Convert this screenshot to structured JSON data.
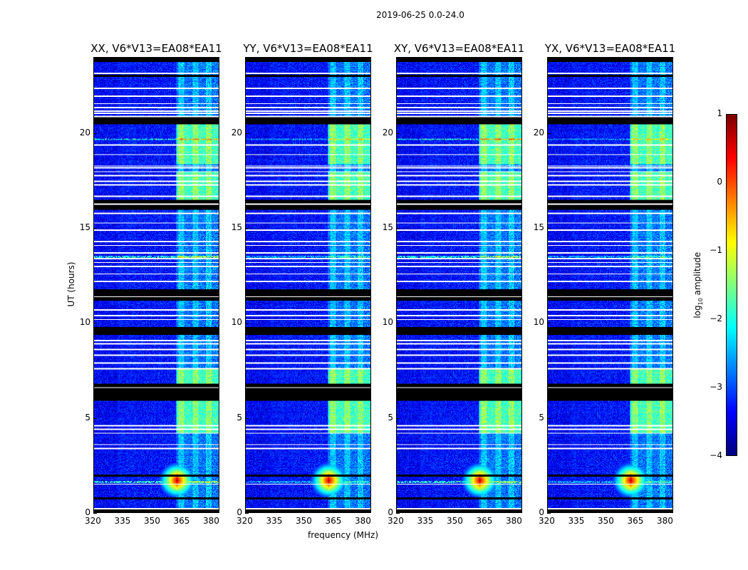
{
  "suptitle": "2019-06-25 0.0-24.0",
  "chart_data": {
    "type": "heatmap",
    "title": "2019-06-25 0.0-24.0",
    "xlabel": "frequency (MHz)",
    "ylabel": "UT (hours)",
    "xlim": [
      320,
      384
    ],
    "ylim": [
      0,
      24
    ],
    "xticks": [
      "320",
      "335",
      "350",
      "365",
      "380"
    ],
    "xtick_values": [
      320,
      335,
      350,
      365,
      380
    ],
    "yticks": [
      "0",
      "5",
      "10",
      "15",
      "20"
    ],
    "ytick_values": [
      0,
      5,
      10,
      15,
      20
    ],
    "panels": [
      {
        "title": "XX, V6*V13=EA08*EA11"
      },
      {
        "title": "YY, V6*V13=EA08*EA11"
      },
      {
        "title": "XY, V6*V13=EA08*EA11"
      },
      {
        "title": "YX, V6*V13=EA08*EA11"
      }
    ],
    "colorbar": {
      "label": "log10 amplitude",
      "label_main": "log",
      "label_sub": "10",
      "label_rest": " amplitude",
      "colormap": "jet",
      "range": [
        -4,
        1
      ],
      "ticks": [
        "1",
        "0",
        "−1",
        "−2",
        "−3",
        "−4"
      ],
      "tick_values": [
        1,
        0,
        -1,
        -2,
        -3,
        -4
      ]
    },
    "background_log_amplitude": -3.3,
    "bright_band_mhz": [
      362,
      384
    ],
    "bright_band_periods_hours": [
      [
        18.4,
        20.6
      ],
      [
        4.2,
        5.9
      ],
      [
        6.4,
        7.6
      ],
      [
        16.0,
        18.0
      ]
    ],
    "rfi_spike": {
      "freq_mhz": 362.5,
      "time_hours": 1.7,
      "log_amplitude": 0.5
    },
    "horizontal_rfi_hours": [
      13.5,
      19.7,
      1.6
    ],
    "flagged_white_hours": [
      23.2,
      22.4,
      22.0,
      21.6,
      21.4,
      21.2,
      21.1,
      20.9,
      19.4,
      18.9,
      18.3,
      18.2,
      18.0,
      17.8,
      17.5,
      17.3,
      16.7,
      16.3,
      15.8,
      15.3,
      14.9,
      14.3,
      14.1,
      13.7,
      13.4,
      13.2,
      13.0,
      12.6,
      12.2,
      11.4,
      10.7,
      10.4,
      10.2,
      9.1,
      8.9,
      8.6,
      8.3,
      7.9,
      7.6,
      6.6,
      4.6,
      4.4,
      4.2,
      3.6,
      3.4,
      1.5,
      0.2
    ],
    "flagged_black_ranges_hours": [
      [
        23.8,
        24.0
      ],
      [
        23.0,
        23.1
      ],
      [
        20.5,
        20.9
      ],
      [
        16.0,
        16.5
      ],
      [
        11.2,
        11.8
      ],
      [
        9.4,
        9.8
      ],
      [
        5.9,
        6.8
      ],
      [
        1.9,
        2.0
      ],
      [
        0.7,
        0.8
      ],
      [
        0.0,
        0.15
      ]
    ]
  }
}
